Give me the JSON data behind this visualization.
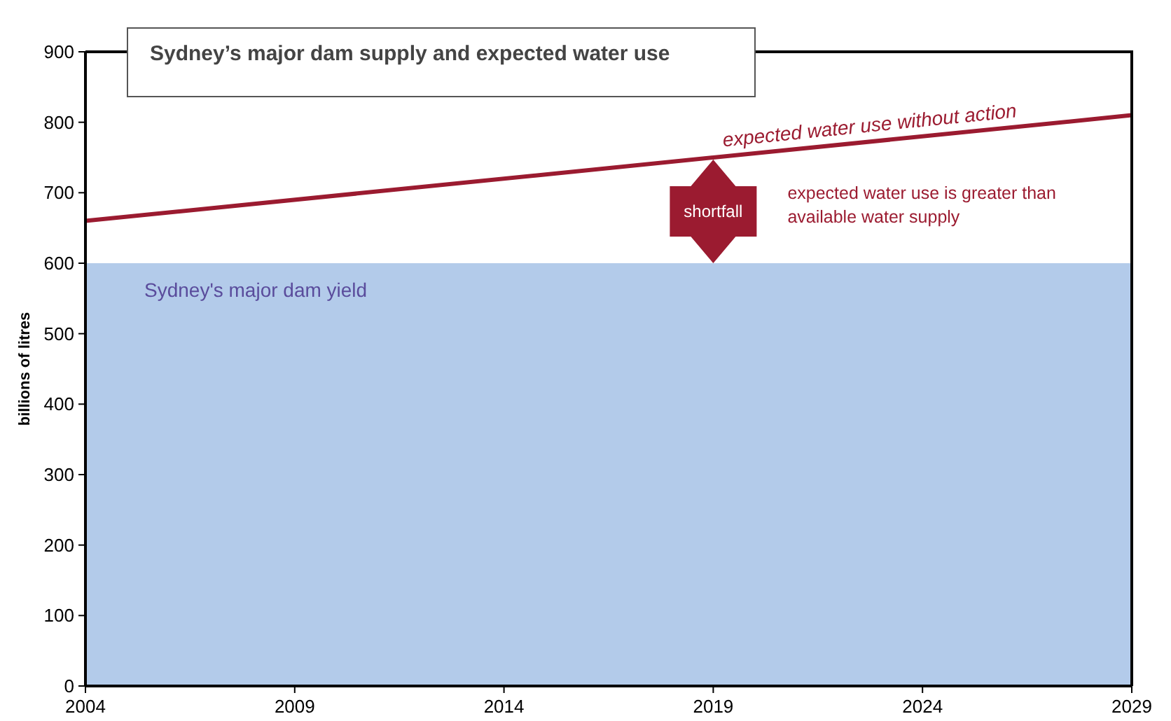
{
  "chart_data": {
    "type": "area",
    "title": "Sydney’s major dam supply and expected water use",
    "ylabel": "billions of litres",
    "x": [
      2004,
      2029
    ],
    "series": [
      {
        "name": "Sydney's major dam yield",
        "color": "#b3cbea",
        "values": [
          600,
          600
        ]
      },
      {
        "name": "expected water use without action",
        "type": "line",
        "color": "#9b1b30",
        "values": [
          660,
          810
        ]
      }
    ],
    "xlim": [
      2004,
      2029
    ],
    "xticks": [
      2004,
      2009,
      2014,
      2019,
      2024,
      2029
    ],
    "ylim": [
      0,
      900
    ],
    "yticks": [
      0,
      100,
      200,
      300,
      400,
      500,
      600,
      700,
      800,
      900
    ],
    "annotations": [
      "shortfall",
      "expected water use is greater than available water supply"
    ]
  }
}
